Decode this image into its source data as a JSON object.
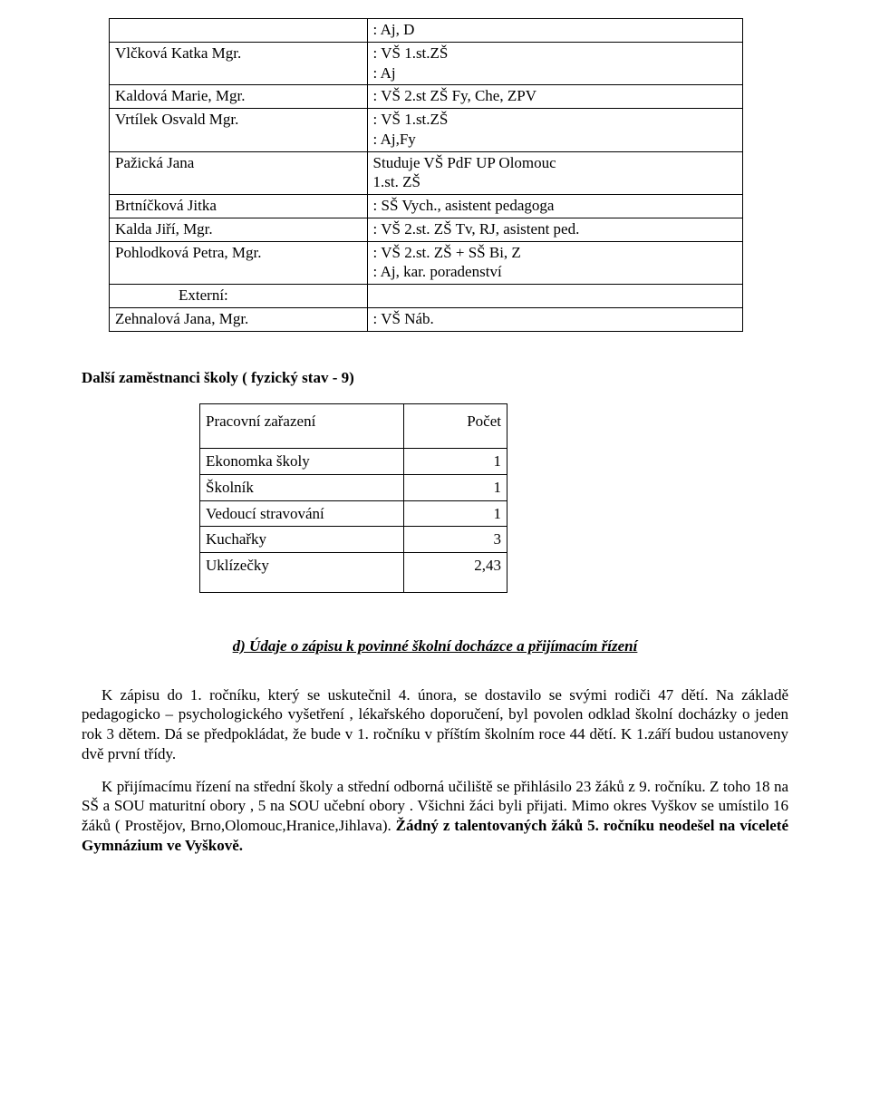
{
  "staff": {
    "rows": [
      {
        "name": "",
        "detail_lines": [
          ": Aj, D"
        ]
      },
      {
        "name": "Vlčková Katka Mgr.",
        "detail_lines": [
          ": VŠ 1.st.ZŠ",
          ": Aj"
        ]
      },
      {
        "name": "Kaldová Marie, Mgr.",
        "detail_lines": [
          ": VŠ 2.st ZŠ Fy, Che, ZPV"
        ]
      },
      {
        "name": "Vrtílek Osvald  Mgr.",
        "detail_lines": [
          ": VŠ 1.st.ZŠ",
          ":  Aj,Fy"
        ]
      },
      {
        "name": "Pažická Jana",
        "detail_lines": [
          "Studuje VŠ PdF UP Olomouc",
          "1.st. ZŠ"
        ]
      },
      {
        "name": "Brtníčková Jitka",
        "detail_lines": [
          ": SŠ Vych., asistent pedagoga"
        ]
      },
      {
        "name": "Kalda Jiří, Mgr.",
        "detail_lines": [
          ": VŠ 2.st. ZŠ Tv, RJ, asistent ped."
        ]
      },
      {
        "name": "Pohlodková Petra, Mgr.",
        "detail_lines": [
          ": VŠ 2.st. ZŠ + SŠ Bi, Z",
          ": Aj, kar. poradenství"
        ]
      },
      {
        "name_indent": true,
        "name": "Externí:",
        "detail_lines": [
          ""
        ]
      },
      {
        "name": "Zehnalová Jana, Mgr.",
        "detail_lines": [
          ": VŠ Náb."
        ]
      }
    ]
  },
  "section2_title": "Další zaměstnanci školy ( fyzický stav - 9)",
  "count_table": {
    "header": {
      "label": "Pracovní zařazení",
      "num": "Počet"
    },
    "rows": [
      {
        "label": "Ekonomka školy",
        "num": "1"
      },
      {
        "label": "Školník",
        "num": "1"
      },
      {
        "label": "Vedoucí stravování",
        "num": "1"
      },
      {
        "label": "Kuchařky",
        "num": "3"
      },
      {
        "label": "Uklízečky",
        "num": "2,43"
      }
    ]
  },
  "subheading": "d) Údaje o zápisu k povinné školní docházce a přijímacím řízení",
  "para1": "K zápisu do 1. ročníku, který se uskutečnil  4. února, se dostavilo se svými rodiči 47 dětí. Na základě pedagogicko – psychologického vyšetření , lékařského doporučení, byl povolen odklad školní docházky o jeden rok 3 dětem. Dá se předpokládat, že bude v 1. ročníku v příštím školním roce 44 dětí. K 1.září budou ustanoveny dvě první třídy.",
  "para2_plain": "K přijímacímu řízení na střední školy a střední odborná učiliště se přihlásilo 23 žáků z 9. ročníku. Z toho 18 na SŠ a SOU maturitní obory , 5 na SOU učební obory . Všichni žáci byli přijati.  Mimo okres Vyškov se umístilo 16 žáků ( Prostějov, Brno,Olomouc,Hranice,Jihlava). ",
  "para2_bold": "Žádný z talentovaných žáků  5. ročníku neodešel na víceleté Gymnázium ve Vyškově."
}
